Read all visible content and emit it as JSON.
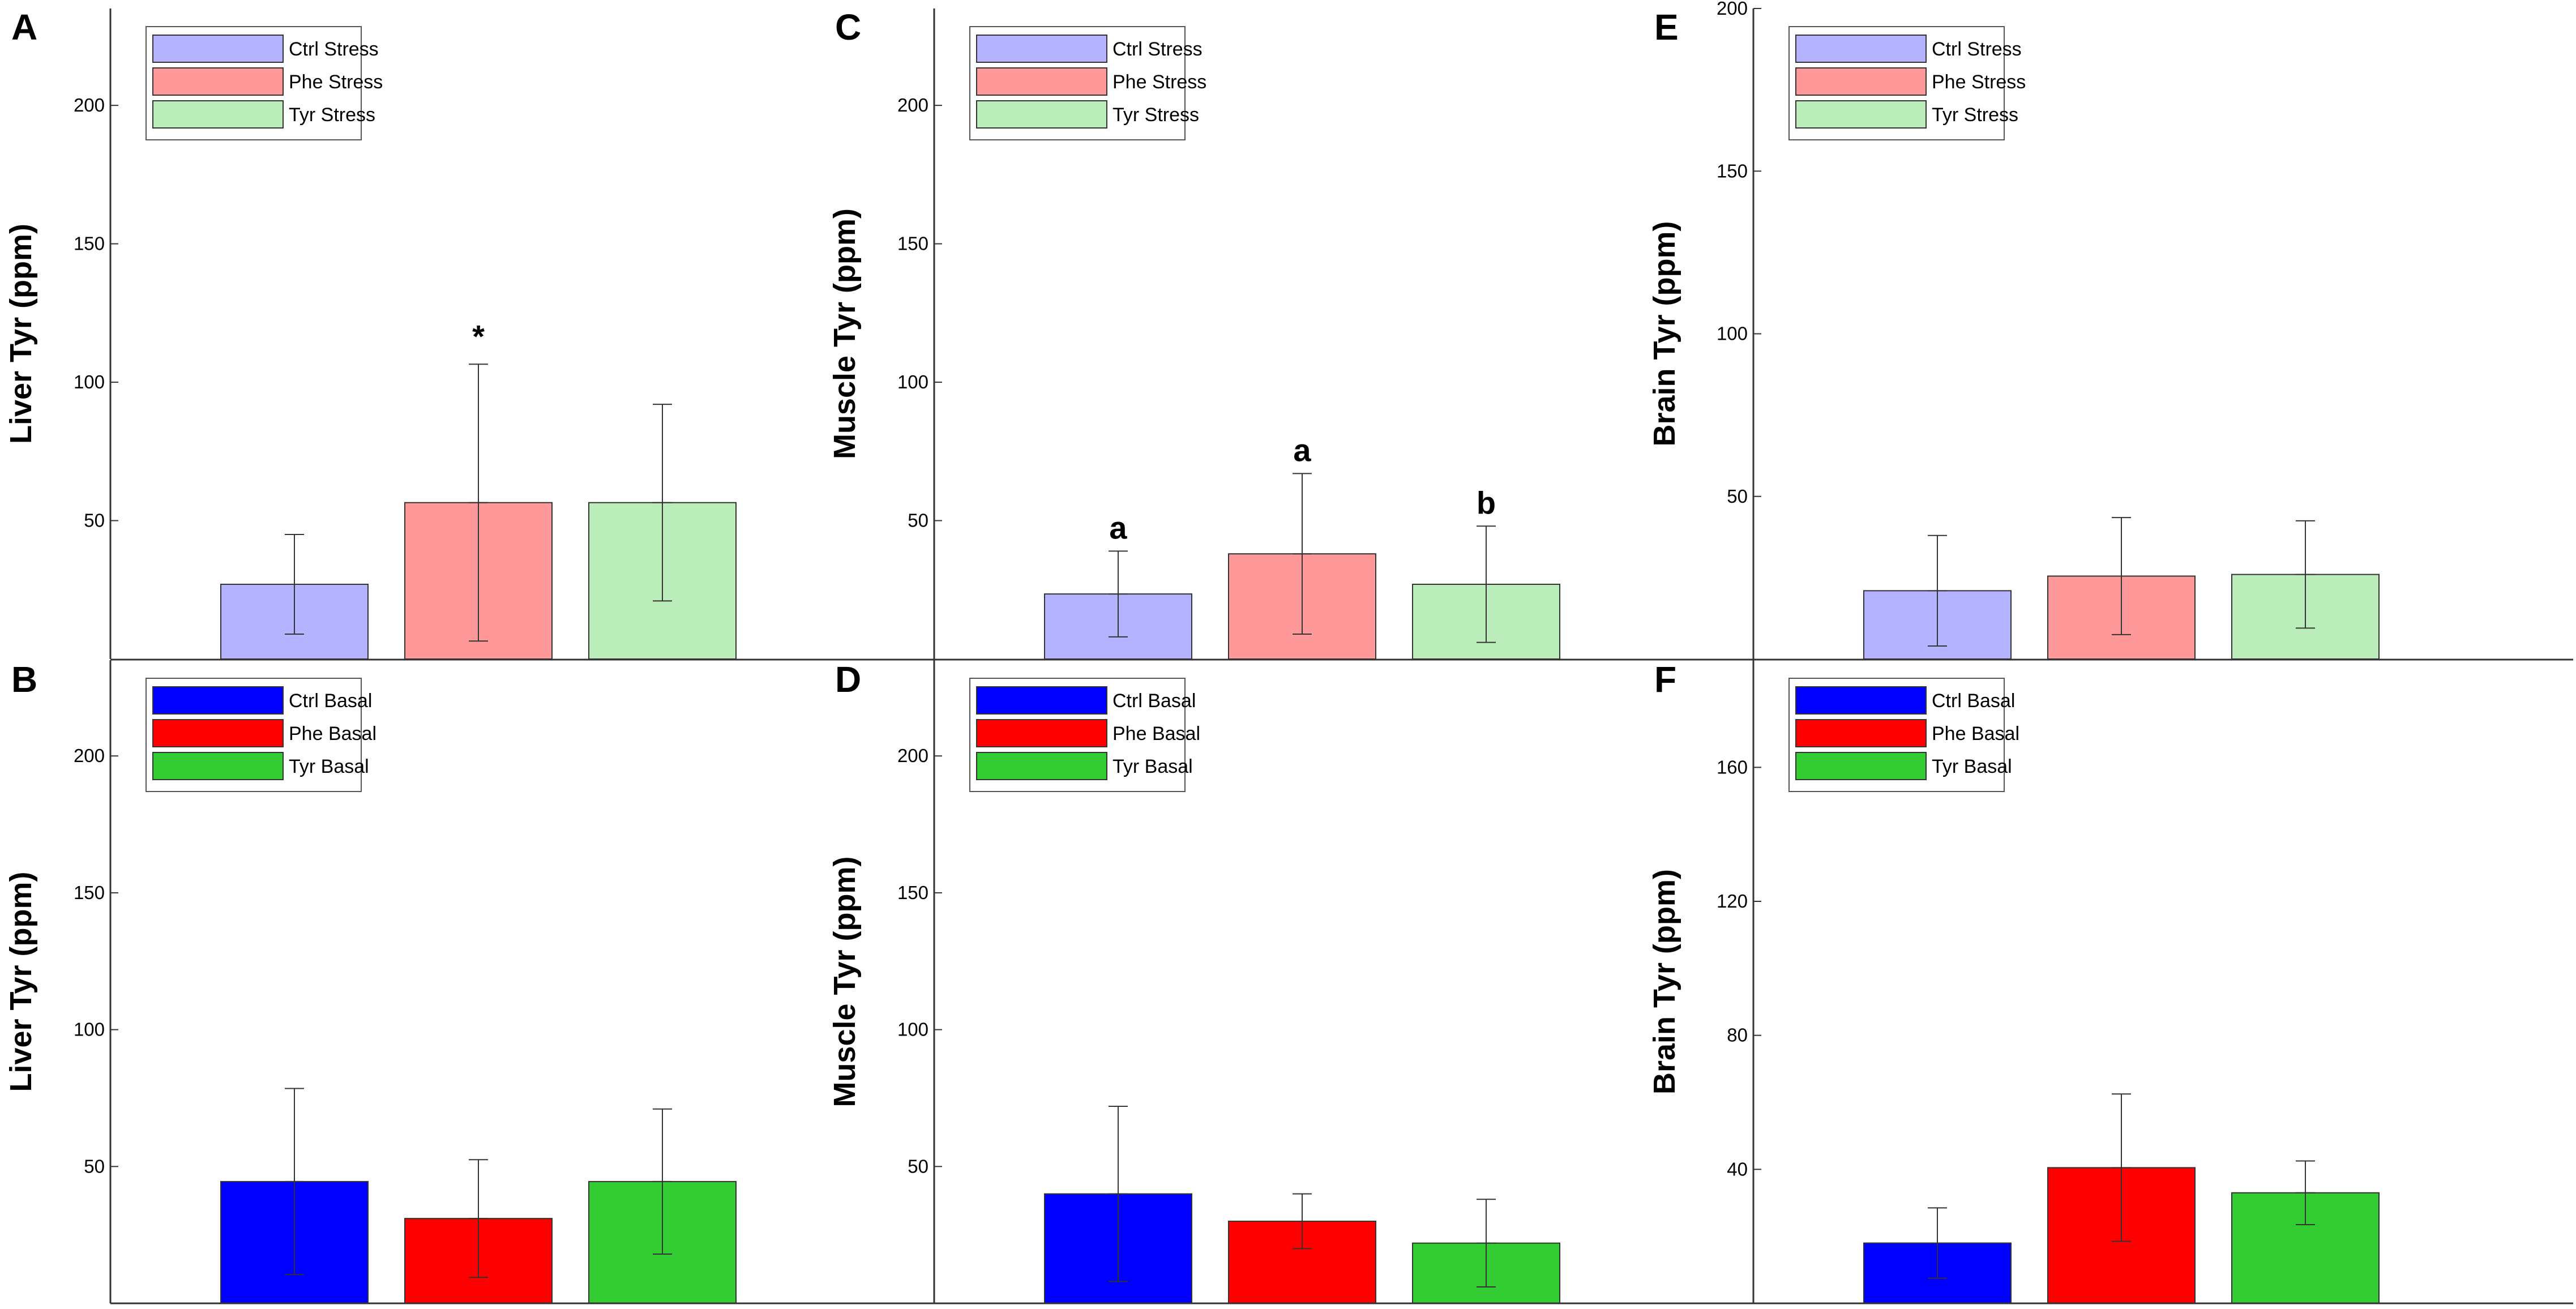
{
  "chart_data": [
    {
      "panel": "A",
      "type": "bar",
      "ylabel": "Liver Tyr (ppm)",
      "yticks": [
        50,
        100,
        150,
        200
      ],
      "ylim": [
        0,
        235
      ],
      "series": [
        {
          "name": "Ctrl Stress",
          "value": 27,
          "error": 18,
          "color": "#b3b3ff",
          "annotation": ""
        },
        {
          "name": "Phe Stress",
          "value": 56.5,
          "error": 50,
          "color": "#ff9999",
          "annotation": "*"
        },
        {
          "name": "Tyr Stress",
          "value": 56.5,
          "error": 35.5,
          "color": "#bbedbb",
          "annotation": ""
        }
      ]
    },
    {
      "panel": "B",
      "type": "bar",
      "ylabel": "Liver Tyr (ppm)",
      "yticks": [
        50,
        100,
        150,
        200
      ],
      "ylim": [
        0,
        235
      ],
      "series": [
        {
          "name": "Ctrl Basal",
          "value": 44.5,
          "error": 34,
          "color": "#0000ff",
          "annotation": ""
        },
        {
          "name": "Phe Basal",
          "value": 31,
          "error": 21.5,
          "color": "#ff0000",
          "annotation": ""
        },
        {
          "name": "Tyr Basal",
          "value": 44.5,
          "error": 26.5,
          "color": "#33cc33",
          "annotation": ""
        }
      ]
    },
    {
      "panel": "C",
      "type": "bar",
      "ylabel": "Muscle Tyr (ppm)",
      "yticks": [
        50,
        100,
        150,
        200
      ],
      "ylim": [
        0,
        235
      ],
      "series": [
        {
          "name": "Ctrl Stress",
          "value": 23.5,
          "error": 15.5,
          "color": "#b3b3ff",
          "annotation": "a"
        },
        {
          "name": "Phe Stress",
          "value": 38,
          "error": 29,
          "color": "#ff9999",
          "annotation": "a"
        },
        {
          "name": "Tyr Stress",
          "value": 27,
          "error": 21,
          "color": "#bbedbb",
          "annotation": "b"
        }
      ]
    },
    {
      "panel": "D",
      "type": "bar",
      "ylabel": "Muscle Tyr (ppm)",
      "yticks": [
        50,
        100,
        150,
        200
      ],
      "ylim": [
        0,
        235
      ],
      "series": [
        {
          "name": "Ctrl Basal",
          "value": 40,
          "error": 32,
          "color": "#0000ff",
          "annotation": ""
        },
        {
          "name": "Phe Basal",
          "value": 30,
          "error": 10,
          "color": "#ff0000",
          "annotation": ""
        },
        {
          "name": "Tyr Basal",
          "value": 22,
          "error": 16,
          "color": "#33cc33",
          "annotation": ""
        }
      ]
    },
    {
      "panel": "E",
      "type": "bar",
      "ylabel": "Brain Tyr (ppm)",
      "yticks": [
        50,
        100,
        150,
        200
      ],
      "ylim": [
        0,
        200
      ],
      "series": [
        {
          "name": "Ctrl Stress",
          "value": 21,
          "error": 17,
          "color": "#b3b3ff",
          "annotation": ""
        },
        {
          "name": "Phe Stress",
          "value": 25.5,
          "error": 18,
          "color": "#ff9999",
          "annotation": ""
        },
        {
          "name": "Tyr Stress",
          "value": 26,
          "error": 16.5,
          "color": "#bbedbb",
          "annotation": ""
        }
      ]
    },
    {
      "panel": "F",
      "type": "bar",
      "ylabel": "Brain Tyr (ppm)",
      "yticks": [
        40,
        80,
        120,
        160
      ],
      "ylim": [
        0,
        192
      ],
      "series": [
        {
          "name": "Ctrl Basal",
          "value": 18,
          "error": 10.5,
          "color": "#0000ff",
          "annotation": ""
        },
        {
          "name": "Phe Basal",
          "value": 40.5,
          "error": 22,
          "color": "#ff0000",
          "annotation": ""
        },
        {
          "name": "Tyr Basal",
          "value": 33,
          "error": 9.5,
          "color": "#33cc33",
          "annotation": ""
        }
      ]
    }
  ]
}
